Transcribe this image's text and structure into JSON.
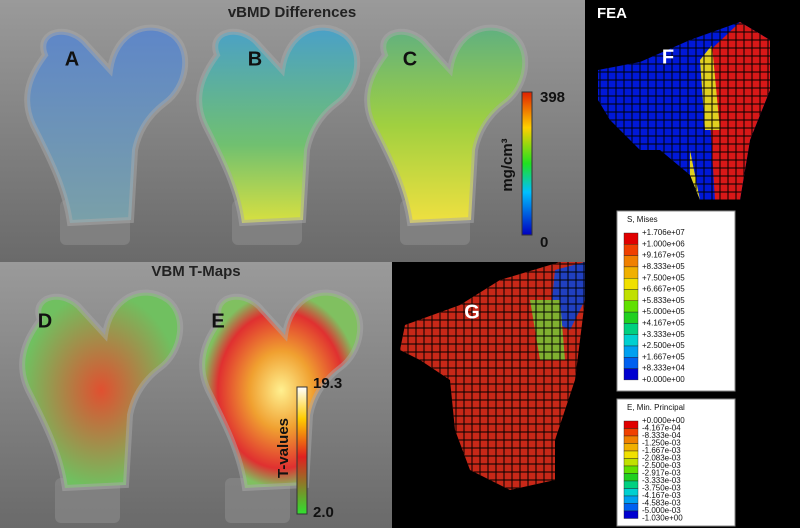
{
  "vbmd": {
    "title": "vBMD Differences",
    "panels": [
      "A",
      "B",
      "C"
    ],
    "colorbar": {
      "unit": "mg/cm³",
      "max": "398",
      "min": "0"
    }
  },
  "vbm": {
    "title": "VBM T-Maps",
    "panels": [
      "D",
      "E"
    ],
    "colorbar": {
      "unit": "T-values",
      "max": "19.3",
      "min": "2.0"
    }
  },
  "fea": {
    "title": "FEA",
    "panels": [
      "F",
      "G"
    ],
    "legends": [
      {
        "title": "S, Mises",
        "entries": [
          "+1.706e+07",
          "+1.000e+06",
          "+9.167e+05",
          "+8.333e+05",
          "+7.500e+05",
          "+6.667e+05",
          "+5.833e+05",
          "+5.000e+05",
          "+4.167e+05",
          "+3.333e+05",
          "+2.500e+05",
          "+1.667e+05",
          "+8.333e+04",
          "+0.000e+00"
        ]
      },
      {
        "title": "E, Min. Principal",
        "entries": [
          "+0.000e+00",
          "-4.167e-04",
          "-8.333e-04",
          "-1.250e-03",
          "-1.667e-03",
          "-2.083e-03",
          "-2.500e-03",
          "-2.917e-03",
          "-3.333e-03",
          "-3.750e-03",
          "-4.167e-03",
          "-4.583e-03",
          "-5.000e-03",
          "-1.030e+00"
        ]
      }
    ]
  }
}
